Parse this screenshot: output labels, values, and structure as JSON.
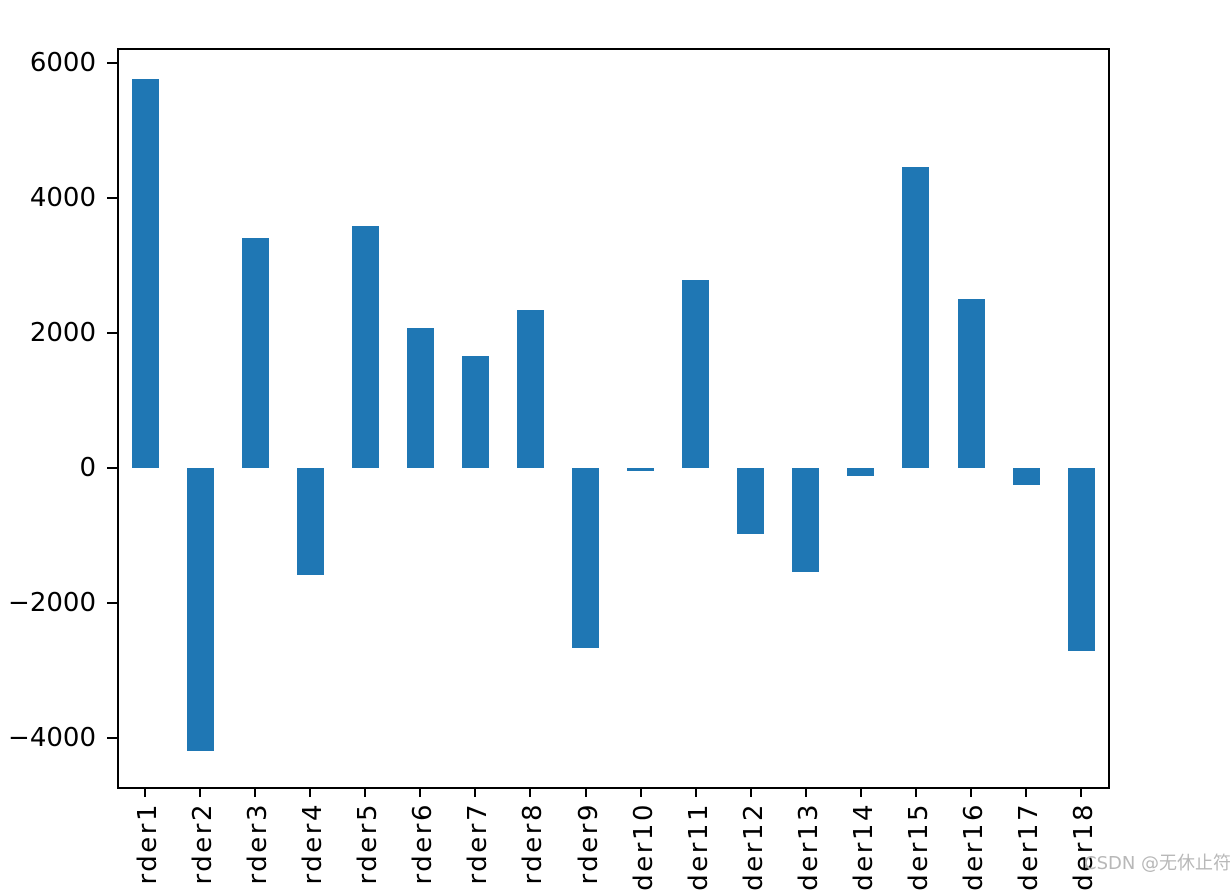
{
  "figure": {
    "background": "#ffffff"
  },
  "watermark": {
    "text": "CSDN @无休止符",
    "color": "#b8b8b8"
  },
  "chart_data": {
    "type": "bar",
    "title": "",
    "xlabel": "",
    "ylabel": "",
    "categories": [
      "rder1",
      "rder2",
      "rder3",
      "rder4",
      "rder5",
      "rder6",
      "rder7",
      "rder8",
      "rder9",
      "der10",
      "der11",
      "der12",
      "der13",
      "der14",
      "der15",
      "der16",
      "der17",
      "der18"
    ],
    "values": [
      5770,
      -4200,
      3400,
      -1590,
      3590,
      2080,
      1660,
      2340,
      -2670,
      -50,
      2790,
      -980,
      -1545,
      -120,
      4460,
      2500,
      -250,
      -2710
    ],
    "bar_color": "#1f77b4",
    "axis_color": "#000000",
    "tick_label_color": "#000000",
    "y_ticks": [
      6000,
      4000,
      2000,
      0,
      -2000,
      -4000
    ],
    "y_tick_labels": [
      "6000",
      "4000",
      "2000",
      "0",
      "−2000",
      "−4000"
    ],
    "ylim": [
      -4726,
      6222
    ],
    "grid": false,
    "legend": false,
    "x_tick_rotation": 90
  }
}
